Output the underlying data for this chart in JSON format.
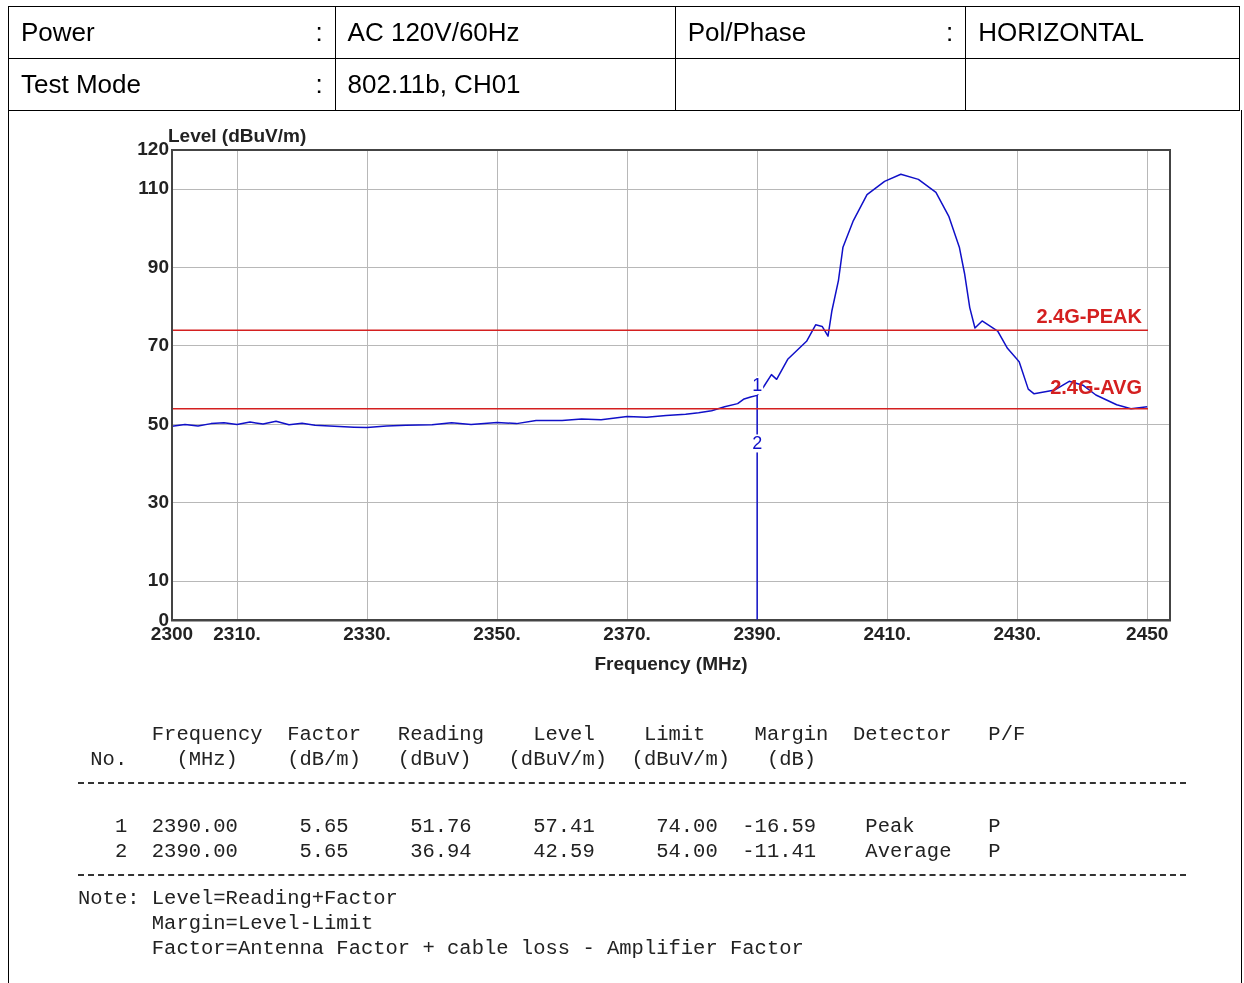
{
  "chart_data": {
    "type": "line",
    "xlabel": "Frequency (MHz)",
    "ylabel": "Level (dBuV/m)",
    "xlim": [
      2300,
      2453.5
    ],
    "ylim": [
      0,
      120
    ],
    "xticks": [
      2300,
      {
        "value": 2310,
        "label": "2310."
      },
      {
        "value": 2330,
        "label": "2330."
      },
      {
        "value": 2350,
        "label": "2350."
      },
      {
        "value": 2370,
        "label": "2370."
      },
      {
        "value": 2390,
        "label": "2390."
      },
      {
        "value": 2410,
        "label": "2410."
      },
      {
        "value": 2430,
        "label": "2430."
      },
      2450
    ],
    "yticks": [
      0,
      10,
      30,
      50,
      70,
      90,
      110,
      120
    ],
    "grid": true,
    "legend": false,
    "marker": "none",
    "line_style": "solid",
    "series": [
      {
        "color": "#1010c8",
        "x": [
          2300,
          2302,
          2304,
          2306,
          2308,
          2310,
          2312,
          2314,
          2316,
          2318,
          2320,
          2322,
          2325,
          2328,
          2330,
          2333,
          2336,
          2340,
          2343,
          2346,
          2350,
          2353,
          2356,
          2360,
          2363,
          2366,
          2370,
          2373,
          2376,
          2379,
          2381,
          2383,
          2385,
          2387,
          2388,
          2389,
          2390,
          2391,
          2392.2,
          2393,
          2394.7,
          2397.6,
          2399,
          2400,
          2400.9,
          2401.5,
          2402.5,
          2403.2,
          2404.8,
          2406.9,
          2409.6,
          2412.1,
          2414.8,
          2417.5,
          2419.5,
          2421.1,
          2421.9,
          2422.7,
          2423.5,
          2424.6,
          2427,
          2428.5,
          2430.3,
          2431.7,
          2432.6,
          2435.8,
          2438,
          2440.1,
          2442.1,
          2445.3,
          2447.5,
          2450
        ],
        "values": [
          49.5,
          50,
          49.6,
          50.2,
          50.4,
          50,
          50.6,
          50.1,
          50.8,
          49.9,
          50.3,
          49.8,
          49.5,
          49.3,
          49.2,
          49.6,
          49.8,
          49.9,
          50.4,
          50,
          50.5,
          50.2,
          51,
          51,
          51.4,
          51.2,
          52,
          51.8,
          52.3,
          52.6,
          53,
          53.5,
          54.5,
          55.3,
          56.5,
          57,
          57.4,
          59.6,
          62.7,
          61.5,
          66.6,
          71.2,
          75.4,
          75,
          72.5,
          79,
          86.7,
          95.2,
          102,
          108.6,
          112,
          113.8,
          112.5,
          109.2,
          103,
          95.2,
          88.5,
          79.8,
          74.6,
          76.4,
          73.8,
          69.4,
          66,
          59,
          57.8,
          58.8,
          61,
          60,
          57.5,
          55,
          54,
          54.5
        ]
      },
      {
        "color": "#1010c8",
        "x": [
          2390,
          2390
        ],
        "values": [
          0,
          57.4
        ]
      }
    ],
    "ref_lines": [
      {
        "axis": "y",
        "value": 74,
        "label": "2.4G-PEAK",
        "color": "#d42020"
      },
      {
        "axis": "y",
        "value": 54,
        "label": "2.4G-AVG",
        "color": "#d42020"
      }
    ],
    "annotations": [
      "Power",
      ":",
      "AC 120V/60Hz",
      "Pol/Phase",
      ":",
      "HORIZONTAL",
      "Test Mode",
      ":",
      "802.11b, CH01",
      "      Frequency  Factor   Reading    Level    Limit    Margin  Detector   P/F",
      " No.    (MHz)    (dB/m)   (dBuV)   (dBuV/m)  (dBuV/m)   (dB)",
      "   1  2390.00     5.65     51.76     57.41     74.00  -16.59    Peak      P",
      "   2  2390.00     5.65     36.94     42.59     54.00  -11.41    Average   P",
      "Note: Level=Reading+Factor",
      "      Margin=Level-Limit",
      "      Factor=Antenna Factor + cable loss - Amplifier Factor",
      {
        "text": "1",
        "x": 2390,
        "y": 57.41
      },
      {
        "text": "2",
        "x": 2390,
        "y": 42.59
      }
    ]
  }
}
